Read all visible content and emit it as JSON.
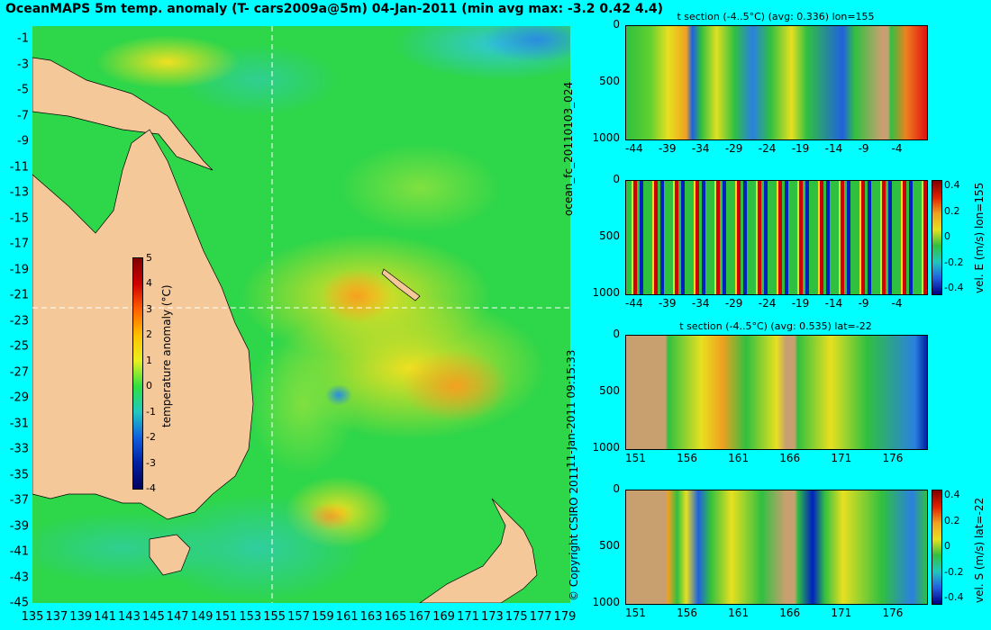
{
  "title": "OceanMAPS 5m temp. anomaly (T- cars2009a@5m) 04-Jan-2011 (min avg max: -3.2 0.42 4.4)",
  "map": {
    "lat_labels": [
      "-1",
      "-3",
      "-5",
      "-7",
      "-9",
      "-11",
      "-13",
      "-15",
      "-17",
      "-19",
      "-21",
      "-23",
      "-25",
      "-27",
      "-29",
      "-31",
      "-33",
      "-35",
      "-37",
      "-39",
      "-41",
      "-43",
      "-45"
    ],
    "lon_labels": [
      "135",
      "137",
      "139",
      "141",
      "143",
      "145",
      "147",
      "149",
      "151",
      "153",
      "155",
      "157",
      "159",
      "161",
      "163",
      "165",
      "167",
      "169",
      "171",
      "173",
      "175",
      "177",
      "179"
    ],
    "colorbar": {
      "ticks": [
        "5",
        "4",
        "3",
        "2",
        "1",
        "0",
        "-1",
        "-2",
        "-3",
        "-4"
      ],
      "label": "temperature anomaly (°C)"
    }
  },
  "side_text": {
    "ocean_fc": "ocean_fc_20110103_024",
    "date": "11-Jan-2011 09:15:33",
    "copyright": "© Copyright CSIRO 2011"
  },
  "panels": [
    {
      "id": "t-section-lon",
      "title": "t section (-4..5°C) (avg: 0.336) lon=155",
      "y_ticks": [
        "0",
        "500",
        "1000"
      ],
      "x_ticks": [
        "-44",
        "-39",
        "-34",
        "-29",
        "-24",
        "-19",
        "-14",
        "-9",
        "-4"
      ]
    },
    {
      "id": "vel-e",
      "title": "",
      "y_ticks": [
        "0",
        "500",
        "1000"
      ],
      "x_ticks": [
        "-44",
        "-39",
        "-34",
        "-29",
        "-24",
        "-19",
        "-14",
        "-9",
        "-4"
      ],
      "colorbar_ticks": [
        "0.4",
        "0.2",
        "0",
        "-0.2",
        "-0.4"
      ],
      "colorbar_label": "vel. E (m/s) lon=155"
    },
    {
      "id": "t-section-lat",
      "title": "t section (-4..5°C) (avg: 0.535) lat=-22",
      "y_ticks": [
        "0",
        "500",
        "1000"
      ],
      "x_ticks": [
        "151",
        "156",
        "161",
        "166",
        "171",
        "176"
      ]
    },
    {
      "id": "vel-s",
      "title": "",
      "y_ticks": [
        "0",
        "500",
        "1000"
      ],
      "x_ticks": [
        "151",
        "156",
        "161",
        "166",
        "171",
        "176"
      ],
      "colorbar_ticks": [
        "0.4",
        "0.2",
        "0",
        "-0.2",
        "-0.4"
      ],
      "colorbar_label": "vel. S (m/s) lat=-22"
    }
  ]
}
